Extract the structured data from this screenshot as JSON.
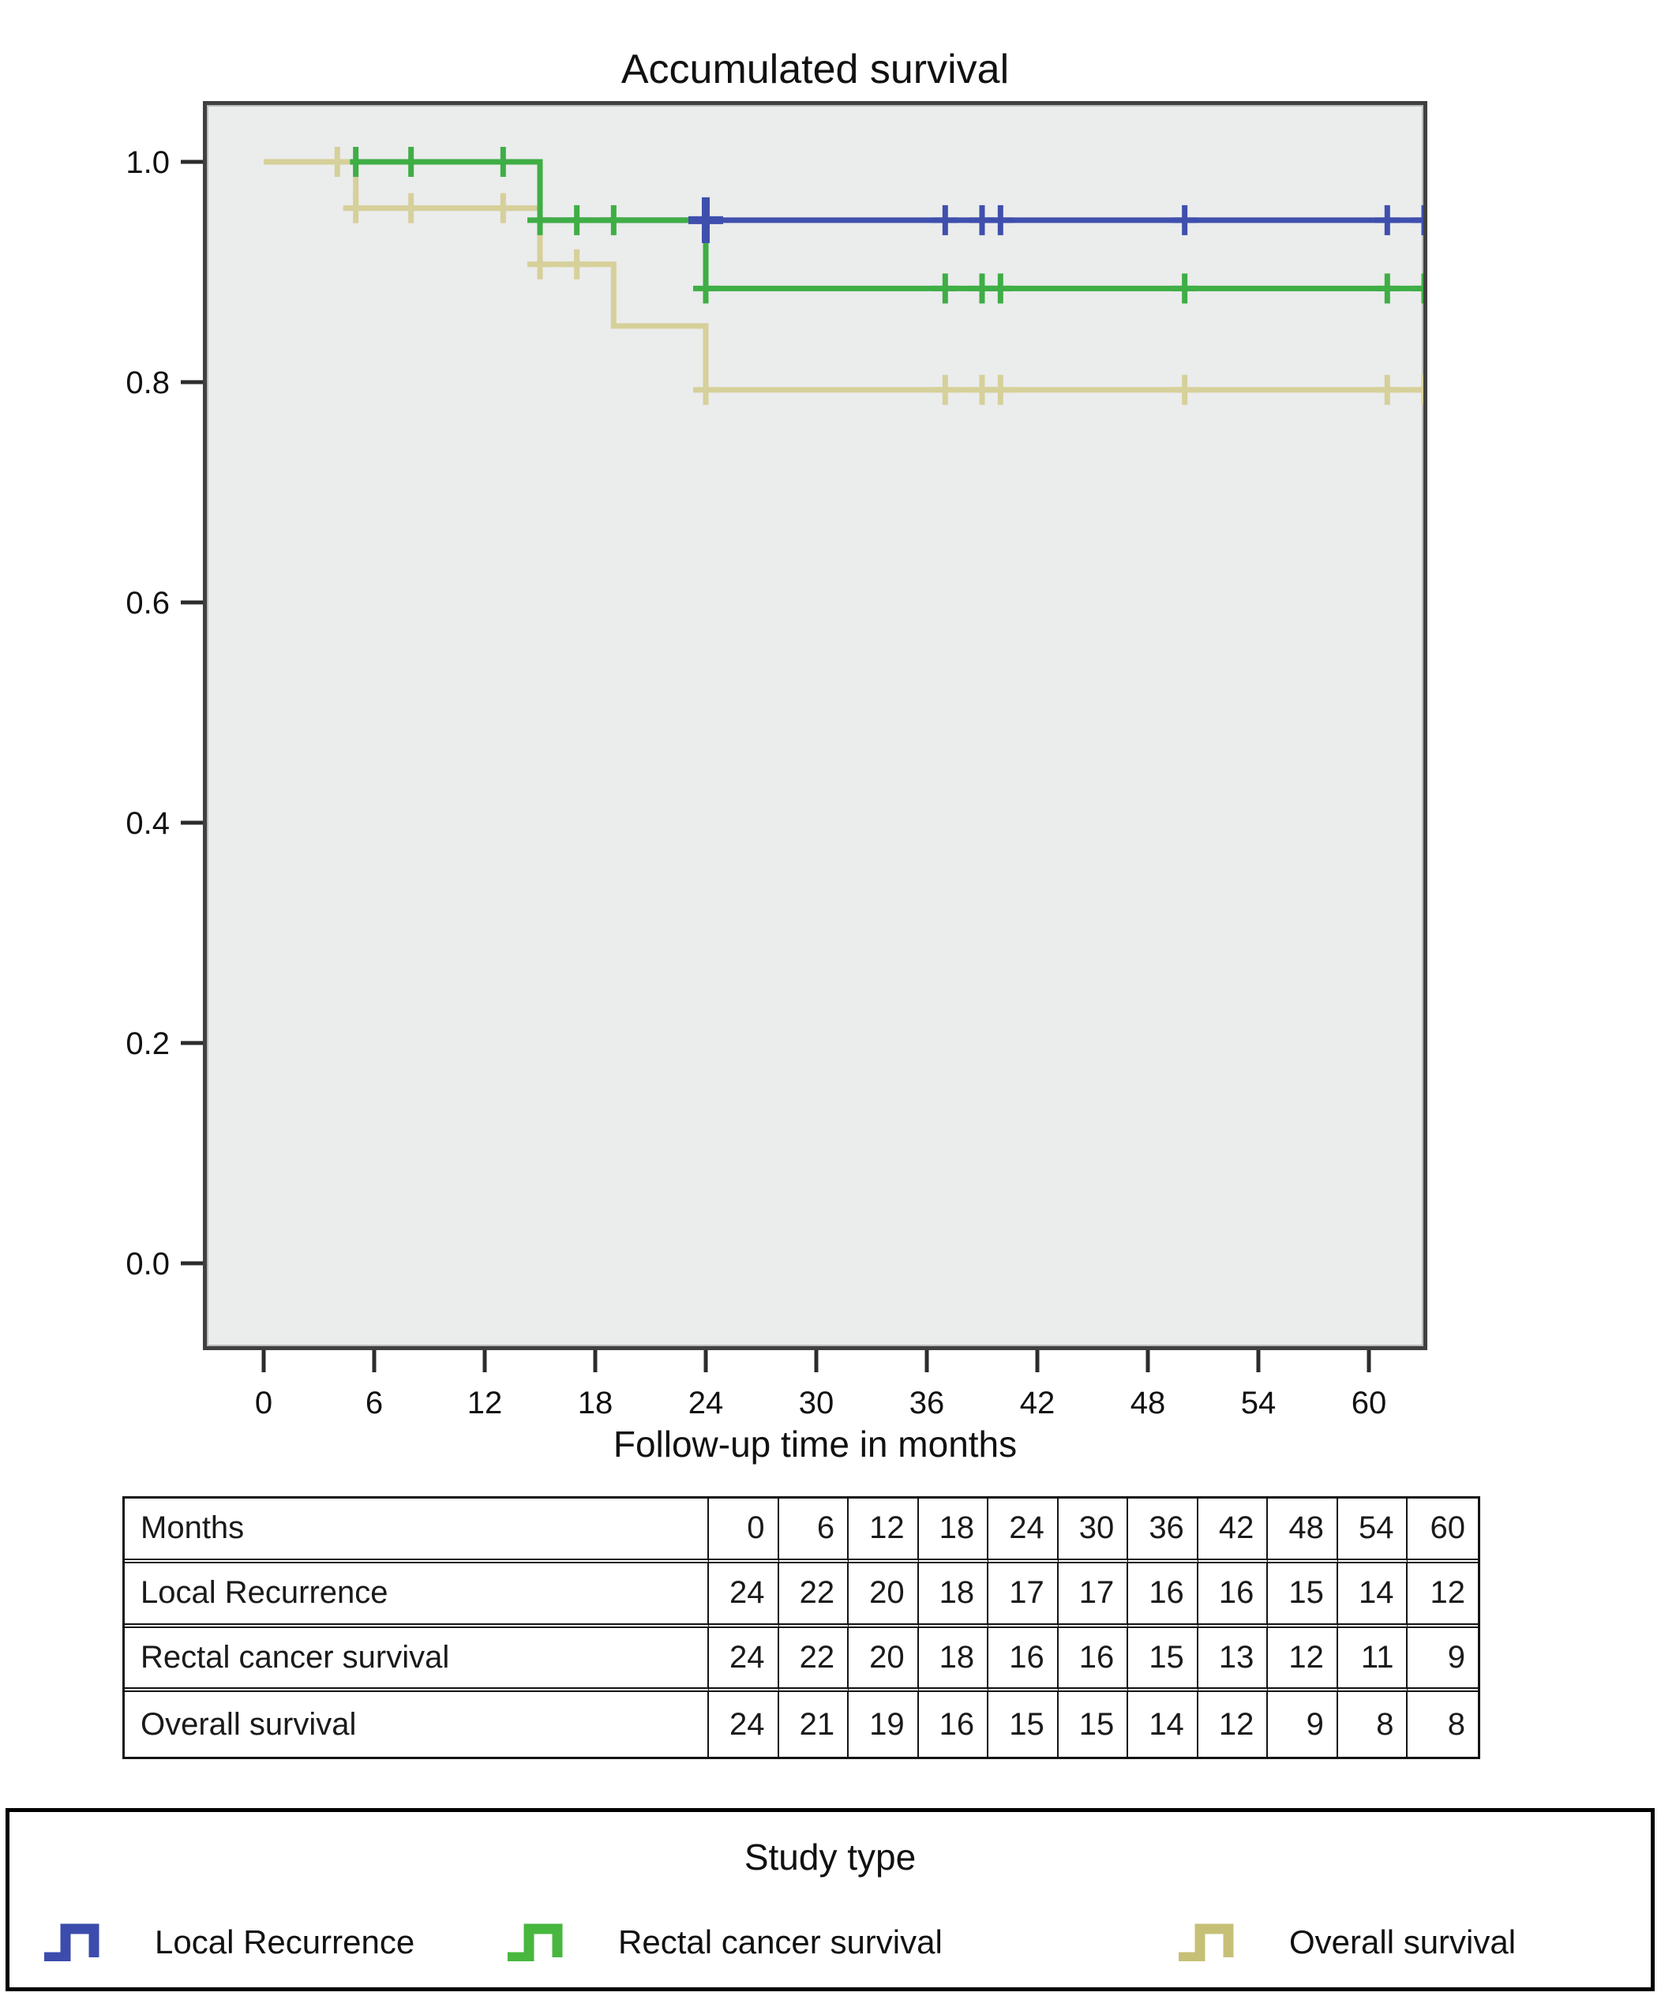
{
  "title": "Accumulated survival",
  "x_axis": {
    "label": "Follow-up time in months",
    "ticks": [
      0,
      6,
      12,
      18,
      24,
      30,
      36,
      42,
      48,
      54,
      60
    ]
  },
  "y_axis": {
    "ticks": [
      "1.0",
      "0.8",
      "0.6",
      "0.4",
      "0.2",
      "0.0"
    ]
  },
  "chart_data": {
    "type": "line",
    "subtype": "kaplan-meier-step",
    "title": "Accumulated survival",
    "xlabel": "Follow-up time in months",
    "ylabel": "",
    "xlim": [
      -3.3,
      63.2
    ],
    "ylim": [
      -0.08,
      1.06
    ],
    "grid": false,
    "plot_background": "#ebecec",
    "series": [
      {
        "name": "Local Recurrence",
        "color": "#3F4FAD",
        "steps": [
          [
            0,
            1.0
          ],
          [
            15,
            1.0
          ],
          [
            15,
            0.947
          ],
          [
            63.1,
            0.947
          ]
        ],
        "censors": [
          [
            24,
            0.947
          ],
          [
            37,
            0.947
          ],
          [
            39,
            0.947
          ],
          [
            40,
            0.947
          ],
          [
            50,
            0.947
          ],
          [
            61,
            0.947
          ],
          [
            63,
            0.947
          ]
        ],
        "big_censors": [
          [
            24,
            0.947
          ]
        ]
      },
      {
        "name": "Rectal cancer survival",
        "color": "#3FAE45",
        "steps": [
          [
            0,
            1.0
          ],
          [
            15,
            1.0
          ],
          [
            15,
            0.947
          ],
          [
            24,
            0.947
          ],
          [
            24,
            0.885
          ],
          [
            63.1,
            0.885
          ]
        ],
        "censors": [
          [
            5,
            1.0
          ],
          [
            8,
            1.0
          ],
          [
            13,
            1.0
          ],
          [
            15,
            0.947
          ],
          [
            17,
            0.947
          ],
          [
            19,
            0.947
          ],
          [
            24,
            0.885
          ],
          [
            37,
            0.885
          ],
          [
            39,
            0.885
          ],
          [
            40,
            0.885
          ],
          [
            50,
            0.885
          ],
          [
            61,
            0.885
          ],
          [
            63,
            0.885
          ]
        ],
        "big_censors": []
      },
      {
        "name": "Overall survival",
        "color": "#D6D09A",
        "steps": [
          [
            0,
            1.0
          ],
          [
            5,
            1.0
          ],
          [
            5,
            0.958
          ],
          [
            15,
            0.958
          ],
          [
            15,
            0.907
          ],
          [
            19,
            0.907
          ],
          [
            19,
            0.851
          ],
          [
            24,
            0.851
          ],
          [
            24,
            0.793
          ],
          [
            63.1,
            0.793
          ]
        ],
        "censors": [
          [
            4,
            1.0
          ],
          [
            5,
            0.958
          ],
          [
            8,
            0.958
          ],
          [
            13,
            0.958
          ],
          [
            15,
            0.907
          ],
          [
            17,
            0.907
          ],
          [
            24,
            0.793
          ],
          [
            37,
            0.793
          ],
          [
            39,
            0.793
          ],
          [
            40,
            0.793
          ],
          [
            50,
            0.793
          ],
          [
            61,
            0.793
          ],
          [
            63,
            0.793
          ]
        ],
        "big_censors": []
      }
    ]
  },
  "risk_table": {
    "header_row": {
      "label": "Months",
      "values": [
        "0",
        "6",
        "12",
        "18",
        "24",
        "30",
        "36",
        "42",
        "48",
        "54",
        "60"
      ]
    },
    "rows": [
      {
        "label": "Local Recurrence",
        "values": [
          "24",
          "22",
          "20",
          "18",
          "17",
          "17",
          "16",
          "16",
          "15",
          "14",
          "12"
        ]
      },
      {
        "label": "Rectal cancer survival",
        "values": [
          "24",
          "22",
          "20",
          "18",
          "16",
          "16",
          "15",
          "13",
          "12",
          "11",
          "9"
        ]
      },
      {
        "label": "Overall survival",
        "values": [
          "24",
          "21",
          "19",
          "16",
          "15",
          "15",
          "14",
          "12",
          "9",
          "8",
          "8"
        ]
      }
    ]
  },
  "legend": {
    "title": "Study type",
    "items": [
      {
        "label": "Local Recurrence",
        "color": "#3C4CAC"
      },
      {
        "label": "Rectal cancer survival",
        "color": "#47B73E"
      },
      {
        "label": "Overall survival",
        "color": "#C6C077"
      }
    ]
  }
}
